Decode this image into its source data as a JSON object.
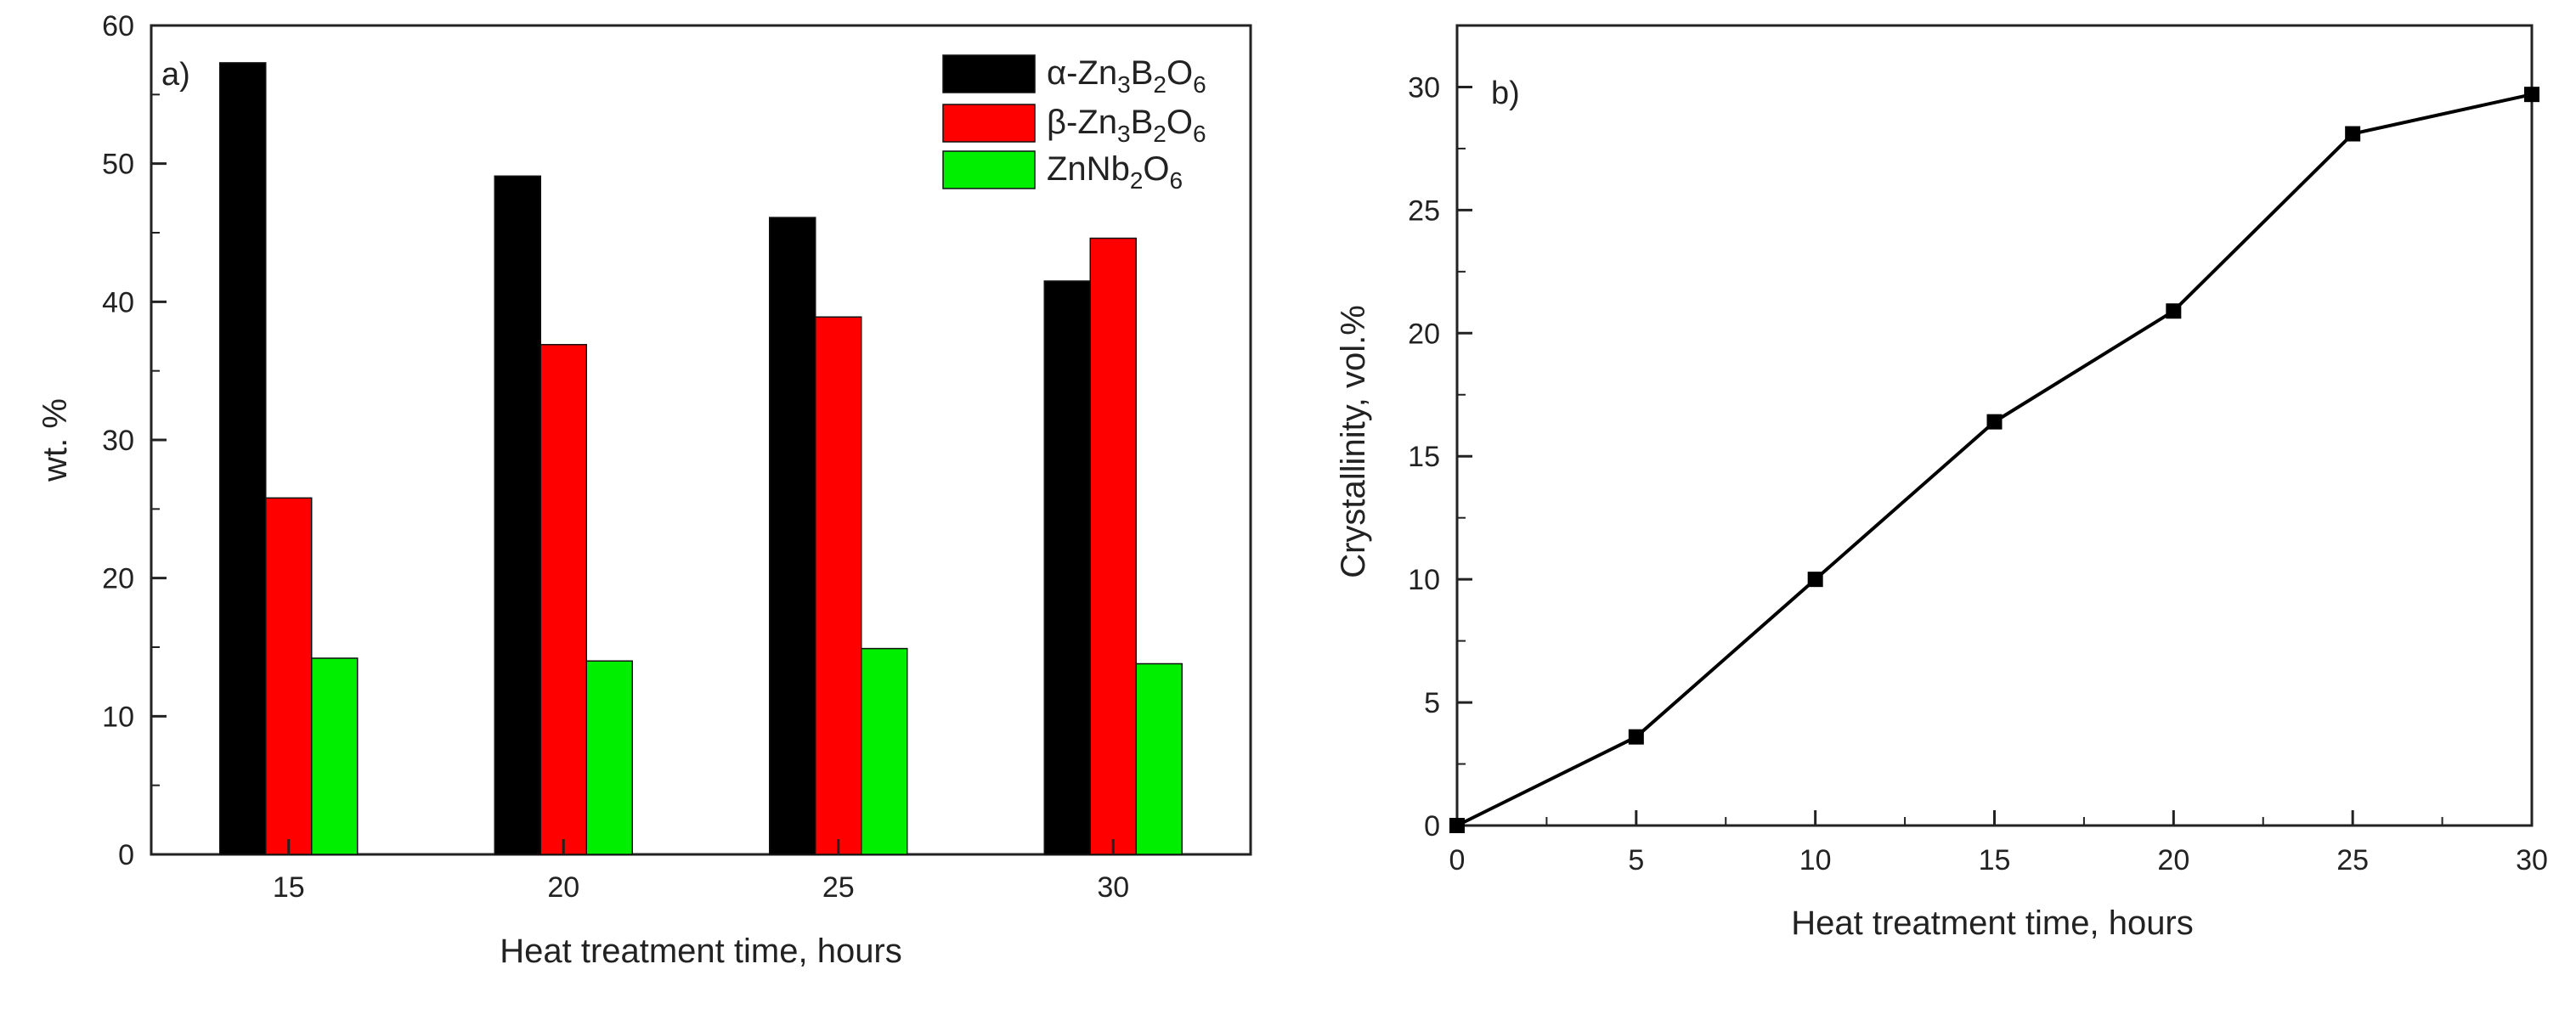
{
  "chart_data": [
    {
      "type": "bar",
      "panel_label": "a)",
      "categories": [
        "15",
        "20",
        "25",
        "30"
      ],
      "series": [
        {
          "name": "α-Zn3B2O6",
          "name_base": "α-Zn",
          "name_subs": [
            "3",
            "2",
            "6"
          ],
          "color": "#000000",
          "values": [
            57.3,
            49.1,
            46.1,
            41.5
          ]
        },
        {
          "name": "β-Zn3B2O6",
          "name_base": "β-Zn",
          "name_subs": [
            "3",
            "2",
            "6"
          ],
          "color": "#ff0000",
          "values": [
            25.8,
            36.9,
            38.9,
            44.6
          ]
        },
        {
          "name": "ZnNb2O6",
          "name_base": "ZnNb",
          "name_subs": [
            "2",
            "6"
          ],
          "color": "#00ee00",
          "values": [
            14.2,
            14.0,
            14.9,
            13.8
          ]
        }
      ],
      "xlabel": "Heat treatment time, hours",
      "ylabel": "wt. %",
      "ylim": [
        0,
        60
      ],
      "yticks": [
        "0",
        "10",
        "20",
        "30",
        "40",
        "50",
        "60"
      ],
      "legend": "top-right",
      "grid": false
    },
    {
      "type": "line",
      "panel_label": "b)",
      "series": [
        {
          "x": [
            0,
            5,
            10,
            15,
            20,
            25,
            30
          ],
          "values": [
            0.0,
            3.6,
            10.0,
            16.4,
            20.9,
            28.1,
            29.7
          ],
          "color": "#000000",
          "marker": "square"
        }
      ],
      "xlabel": "Heat treatment time, hours",
      "ylabel": "Crystallinity, vol.%",
      "xlim": [
        0,
        30
      ],
      "ylim": [
        0,
        32.5
      ],
      "xticks": [
        "0",
        "5",
        "10",
        "15",
        "20",
        "25",
        "30"
      ],
      "yticks": [
        "0",
        "5",
        "10",
        "15",
        "20",
        "25",
        "30"
      ],
      "grid": false
    }
  ]
}
